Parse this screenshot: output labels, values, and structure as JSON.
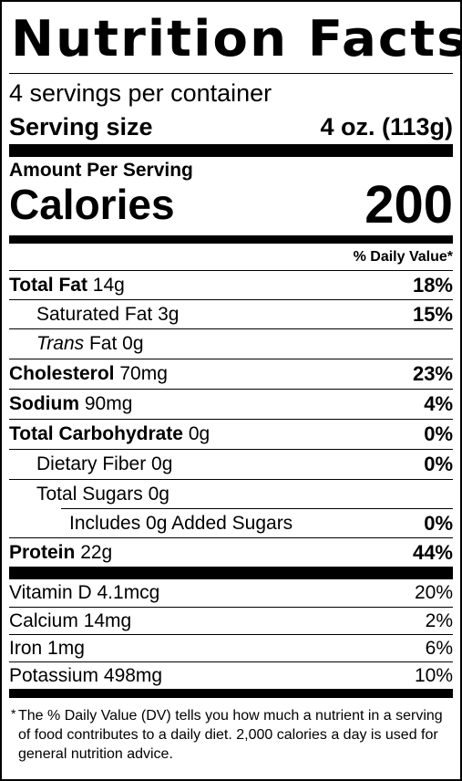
{
  "title": "Nutrition Facts",
  "servings_per_container": "4 servings per container",
  "serving_size": {
    "label": "Serving size",
    "value": "4 oz. (113g)"
  },
  "amount_per_serving": "Amount Per Serving",
  "calories": {
    "label": "Calories",
    "value": "200"
  },
  "daily_value_header": "% Daily Value*",
  "nutrients": [
    {
      "name": "Total Fat",
      "amount": "14g",
      "dv": "18%"
    },
    {
      "name": "Saturated Fat",
      "amount": "3g",
      "dv": "15%"
    },
    {
      "name_italic": "Trans",
      "name": "Fat",
      "amount": "0g",
      "dv": ""
    },
    {
      "name": "Cholesterol",
      "amount": "70mg",
      "dv": "23%"
    },
    {
      "name": "Sodium",
      "amount": "90mg",
      "dv": "4%"
    },
    {
      "name": "Total Carbohydrate",
      "amount": "0g",
      "dv": "0%"
    },
    {
      "name": "Dietary Fiber",
      "amount": "0g",
      "dv": "0%"
    },
    {
      "name": "Total Sugars",
      "amount": "0g",
      "dv": ""
    },
    {
      "name": "Includes 0g Added Sugars",
      "amount": "",
      "dv": "0%"
    },
    {
      "name": "Protein",
      "amount": "22g",
      "dv": "44%"
    }
  ],
  "vitamins": [
    {
      "name": "Vitamin D",
      "amount": "4.1mcg",
      "dv": "20%"
    },
    {
      "name": "Calcium",
      "amount": "14mg",
      "dv": "2%"
    },
    {
      "name": "Iron",
      "amount": "1mg",
      "dv": "6%"
    },
    {
      "name": "Potassium",
      "amount": "498mg",
      "dv": "10%"
    }
  ],
  "footnote": {
    "star": "*",
    "text": "The % Daily Value (DV) tells you how much a nutrient in a serving of food contributes to a daily diet. 2,000 calories a day is used for general nutrition advice."
  }
}
